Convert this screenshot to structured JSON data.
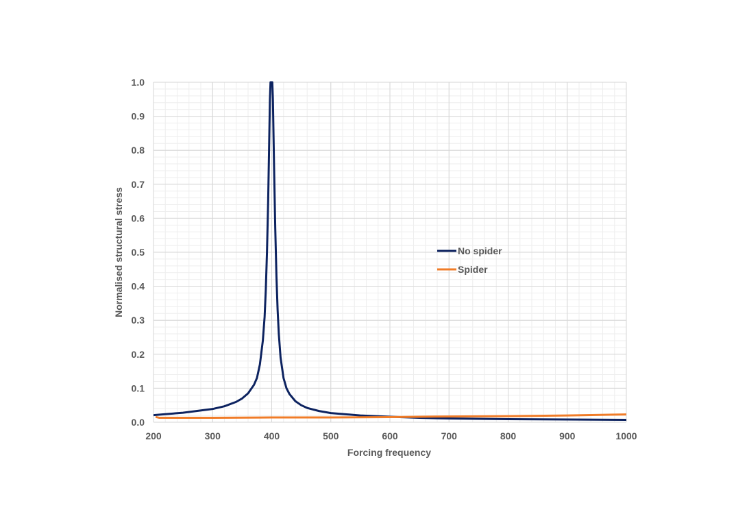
{
  "chart_data": {
    "type": "line",
    "title": "",
    "xlabel": "Forcing frequency",
    "ylabel": "Normalised structural stress",
    "xlim": [
      200,
      1000
    ],
    "ylim": [
      0,
      1.0
    ],
    "x_ticks": [
      200,
      300,
      400,
      500,
      600,
      700,
      800,
      900,
      1000
    ],
    "y_ticks": [
      0.0,
      0.1,
      0.2,
      0.3,
      0.4,
      0.5,
      0.6,
      0.7,
      0.8,
      0.9,
      1.0
    ],
    "x_tick_labels": [
      "200",
      "300",
      "400",
      "500",
      "600",
      "700",
      "800",
      "900",
      "1000"
    ],
    "y_tick_labels": [
      "0.0",
      "0.1",
      "0.2",
      "0.3",
      "0.4",
      "0.5",
      "0.6",
      "0.7",
      "0.8",
      "0.9",
      "1.0"
    ],
    "grid": true,
    "legend_position": "center-right",
    "series": [
      {
        "name": "No spider",
        "color": "#0d2360",
        "x": [
          200,
          250,
          300,
          320,
          340,
          350,
          360,
          370,
          375,
          380,
          385,
          388,
          390,
          392,
          394,
          396,
          397,
          398,
          399,
          400,
          401,
          402,
          403,
          404,
          406,
          408,
          410,
          412,
          415,
          420,
          425,
          430,
          440,
          450,
          460,
          480,
          500,
          550,
          600,
          650,
          700,
          800,
          900,
          1000
        ],
        "y": [
          0.021,
          0.028,
          0.039,
          0.047,
          0.06,
          0.07,
          0.085,
          0.11,
          0.13,
          0.17,
          0.24,
          0.31,
          0.39,
          0.5,
          0.65,
          0.85,
          0.95,
          1.0,
          1.0,
          1.0,
          1.0,
          0.95,
          0.85,
          0.75,
          0.57,
          0.43,
          0.33,
          0.26,
          0.19,
          0.13,
          0.1,
          0.083,
          0.062,
          0.05,
          0.042,
          0.033,
          0.027,
          0.02,
          0.016,
          0.013,
          0.011,
          0.009,
          0.008,
          0.007
        ]
      },
      {
        "name": "Spider",
        "color": "#f07c28",
        "x": [
          205,
          210,
          250,
          300,
          400,
          500,
          600,
          700,
          800,
          900,
          1000
        ],
        "y": [
          0.015,
          0.013,
          0.013,
          0.013,
          0.014,
          0.014,
          0.015,
          0.017,
          0.018,
          0.02,
          0.023
        ]
      }
    ]
  }
}
